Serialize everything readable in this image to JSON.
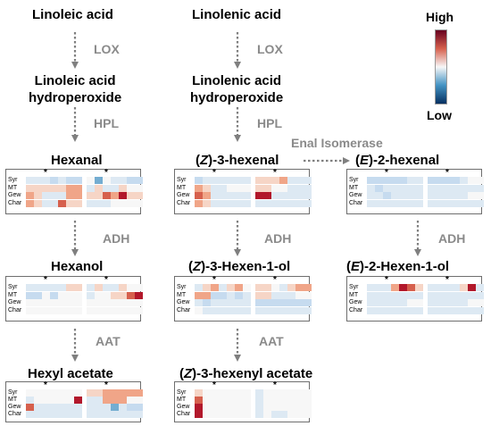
{
  "nodes": {
    "linoleic_acid": "Linoleic acid",
    "linolenic_acid": "Linolenic acid",
    "linoleic_hpo": [
      "Linoleic acid",
      "hydroperoxide"
    ],
    "linolenic_hpo": [
      "Linolenic acid",
      "hydroperoxide"
    ],
    "hexanal": "Hexanal",
    "z3_hexenal": {
      "pre": "(",
      "ital": "Z",
      "post": ")-3-hexenal"
    },
    "e2_hexenal": {
      "pre": "(",
      "ital": "E",
      "post": ")-2-hexenal"
    },
    "hexanol": "Hexanol",
    "z3_hexenol": {
      "pre": "(",
      "ital": "Z",
      "post": ")-3-Hexen-1-ol"
    },
    "e2_hexenol": {
      "pre": "(",
      "ital": "E",
      "post": ")-2-Hexen-1-ol"
    },
    "hexyl_acetate": "Hexyl acetate",
    "z3_hexenyl_acetate": {
      "pre": "(",
      "ital": "Z",
      "post": ")-3-hexenyl acetate"
    }
  },
  "enzymes": {
    "lox": "LOX",
    "hpl": "HPL",
    "enal_isomerase": "Enal Isomerase",
    "adh": "ADH",
    "aat": "AAT"
  },
  "legend": {
    "high": "High",
    "low": "Low",
    "colors": [
      "#67001f",
      "#d6604d",
      "#f7f7f7",
      "#4393c3",
      "#053061"
    ]
  },
  "heatmap_rows": [
    "Syr",
    "MT",
    "Gew",
    "Char"
  ],
  "heatmap_star": "*",
  "palette": [
    "#2f7cba",
    "#74add1",
    "#c6dbef",
    "#dde9f3",
    "#f7f7f7",
    "#f6d5c6",
    "#f0a588",
    "#d6604d",
    "#b2182b"
  ],
  "heatmaps": [
    {
      "id": "hm-hexanal",
      "grid": [
        "3332322|4143322",
        "5555566|3533544",
        "6533366|5576855",
        "6533755|3334444"
      ]
    },
    {
      "id": "hm-z3-hexenal",
      "grid": [
        "2333333|5556333",
        "6533444|5544333",
        "7633333|8833333",
        "6533333|3333333"
      ]
    },
    {
      "id": "hm-e2-hexenal",
      "grid": [
        "2222233|2222344",
        "3233333|3333333",
        "3323333|3333344",
        "3333333|3333333"
      ]
    },
    {
      "id": "hm-hexanol",
      "grid": [
        "3333355|3533544",
        "2242444|3445578",
        "4444444|4444444",
        "4444444|4444444"
      ]
    },
    {
      "id": "hm-z3-hexenol",
      "grid": [
        "3563564|5543566",
        "6622323|5533344",
        "3233333|2222222",
        "4333333|3333333"
      ]
    },
    {
      "id": "hm-e2-hexenol",
      "grid": [
        "3336875|3333583",
        "3333333|3333333",
        "3333344|3333344",
        "3333333|3333333"
      ]
    },
    {
      "id": "hm-hexyl-acetate",
      "grid": [
        "4444444|5566666",
        "3444448|3366644",
        "7333333|3331322",
        "3333333|3333333"
      ]
    },
    {
      "id": "hm-z3-hexenyl-acetate",
      "grid": [
        "5444444|3444444",
        "7444444|3444444",
        "8444444|3444444",
        "8444444|3433444"
      ]
    }
  ]
}
